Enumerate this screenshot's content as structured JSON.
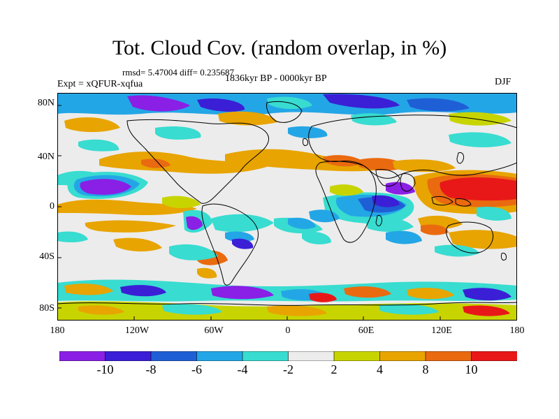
{
  "title": "Tot. Cloud Cov. (random overlap, in %)",
  "stats": "rmsd= 5.47004 diff= 0.235687",
  "experiment": "Expt = xQFUR-xqfua",
  "period": "1836kyr BP - 0000kyr BP",
  "season": "DJF",
  "lat_labels": [
    "80N",
    "40N",
    "0",
    "40S",
    "80S"
  ],
  "lon_labels": [
    "180",
    "120W",
    "60W",
    "0",
    "60E",
    "120E",
    "180"
  ],
  "colorbar": {
    "labels": [
      "-10",
      "-8",
      "-6",
      "-4",
      "-2",
      "2",
      "4",
      "8",
      "10"
    ],
    "colors": [
      "#8a1fe6",
      "#3a1fd6",
      "#1f5fd6",
      "#23a6e6",
      "#38dcd0",
      "#ececec",
      "#c8d400",
      "#e8a400",
      "#ea6a10",
      "#e81818"
    ]
  },
  "map_colors": {
    "neutral": "#ececec",
    "coastline": "#000000",
    "frame": "#000000"
  }
}
